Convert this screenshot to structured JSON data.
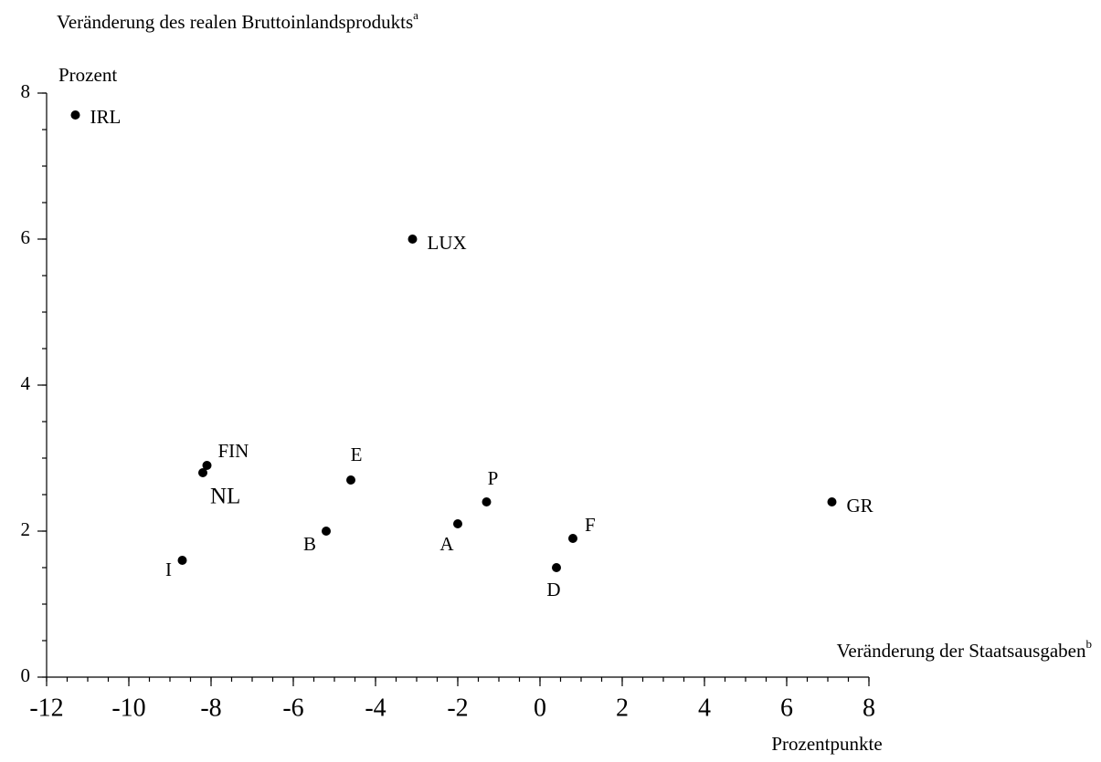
{
  "chart_data": {
    "type": "scatter",
    "title": "Veränderung des realen Bruttoinlandsprodukts",
    "title_superscript": "a",
    "ylabel": "Prozent",
    "xlabel": "Veränderung der Staatsausgaben",
    "xlabel_superscript": "b",
    "xunit": "Prozentpunkte",
    "labels": [
      "IRL",
      "LUX",
      "FIN",
      "NL",
      "E",
      "P",
      "GR",
      "A",
      "B",
      "F",
      "D",
      "I"
    ],
    "x": [
      -11.3,
      -3.1,
      -8.1,
      -8.2,
      -4.6,
      -1.3,
      7.1,
      -2.0,
      -5.2,
      0.8,
      0.4,
      -8.7
    ],
    "values": [
      7.7,
      6.0,
      2.9,
      2.8,
      2.7,
      2.4,
      2.4,
      2.1,
      2.0,
      1.9,
      1.5,
      1.6
    ],
    "color": "#000000",
    "xlim": [
      -12,
      8
    ],
    "xticks": [
      -12,
      -10,
      -8,
      -6,
      -4,
      -2,
      0,
      2,
      4,
      6,
      8
    ],
    "ylim": [
      0,
      8
    ],
    "yticks": [
      0,
      2,
      4,
      6,
      8
    ],
    "minor_tick_step": 0.5
  }
}
